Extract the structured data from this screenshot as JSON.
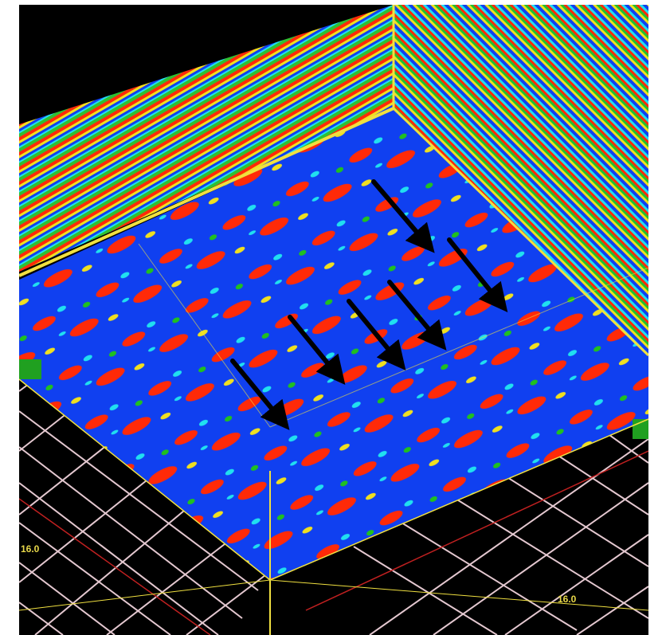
{
  "axis_labels": {
    "left": "16.0",
    "right": "16.0"
  },
  "colors": {
    "background": "#000000",
    "frame": "#f0e040",
    "grid": "#e4c8d0",
    "grid_accent": "#c02020",
    "seismic_blue": "#1040f0",
    "seismic_red": "#ff2a08",
    "seismic_yellow": "#f0e020",
    "seismic_green": "#20c020",
    "seismic_cyan": "#20e0f0",
    "arrow": "#000000"
  },
  "annotations": {
    "arrow_count": 6
  }
}
